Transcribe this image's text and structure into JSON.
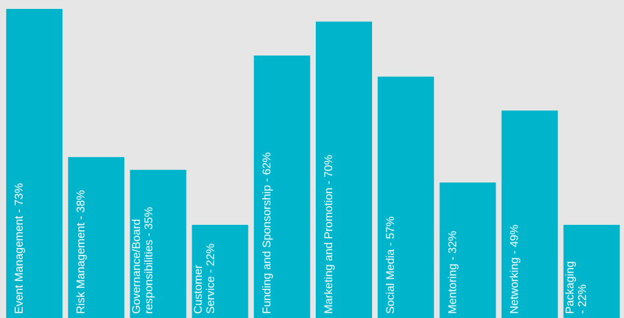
{
  "colors": {
    "background": "#e6e6e7",
    "bar": "#00b5cb",
    "label": "#ffffff"
  },
  "chart_data": {
    "type": "bar",
    "orientation": "vertical",
    "axes_visible": false,
    "grid": false,
    "legend": "none",
    "ylim": [
      0,
      73
    ],
    "categories": [
      [
        "Event Management - 73%"
      ],
      [
        "Risk Management - 38%"
      ],
      [
        "Governance/Board",
        "responsibilities - 35%"
      ],
      [
        "Customer",
        "Service - 22%"
      ],
      [
        "Funding and Sponsorship - 62%"
      ],
      [
        "Marketing and Promotion - 70%"
      ],
      [
        "Social Media - 57%"
      ],
      [
        "Mentoring - 32%"
      ],
      [
        "Networking - 49%"
      ],
      [
        "Packaging",
        "- 22%"
      ]
    ],
    "values": [
      73,
      38,
      35,
      22,
      62,
      70,
      57,
      32,
      49,
      22
    ]
  }
}
